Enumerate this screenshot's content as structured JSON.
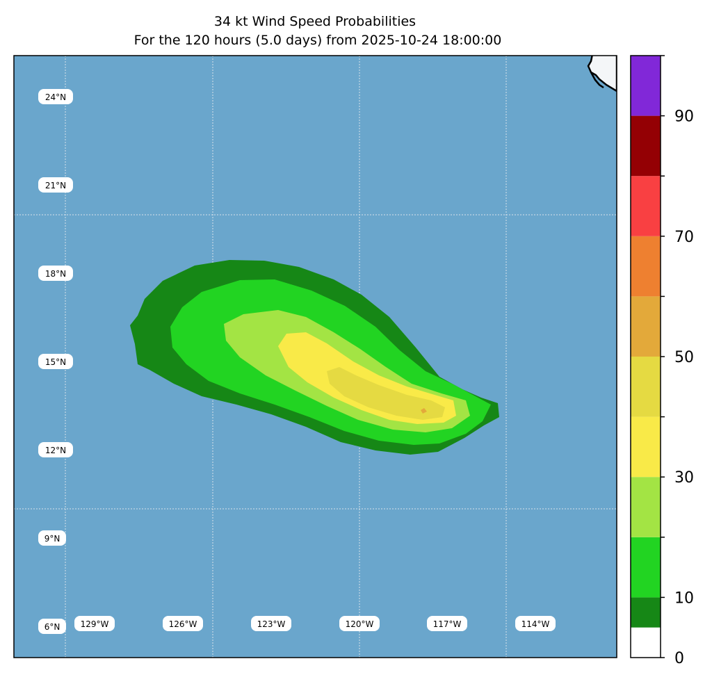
{
  "title_line1": "34 kt Wind Speed Probabilities",
  "title_line2": "For the 120 hours (5.0 days) from 2025-10-24 18:00:00",
  "ocean_color": "#6aa6cc",
  "land_color": "#f4f6f8",
  "lat_labels": [
    "24°N",
    "21°N",
    "18°N",
    "15°N",
    "12°N",
    "9°N",
    "6°N"
  ],
  "lon_labels": [
    "129°W",
    "126°W",
    "123°W",
    "120°W",
    "117°W",
    "114°W"
  ],
  "colorbar": {
    "tick_labels": [
      "0",
      "10",
      "30",
      "50",
      "70",
      "90"
    ],
    "levels": [
      0,
      5,
      10,
      20,
      30,
      40,
      50,
      60,
      70,
      80,
      90,
      100
    ],
    "colors": [
      "#ffffff",
      "#168716",
      "#22d422",
      "#a3e444",
      "#f9ea48",
      "#e5da42",
      "#e3a93a",
      "#ee8030",
      "#f94042",
      "#940004",
      "#8128d8"
    ]
  },
  "probability_bands": [
    {
      "range": "5-10",
      "color": "#168716"
    },
    {
      "range": "10-20",
      "color": "#22d422"
    },
    {
      "range": "20-30",
      "color": "#a3e444"
    },
    {
      "range": "30-40",
      "color": "#f9ea48"
    },
    {
      "range": "40-50",
      "color": "#e5da42"
    },
    {
      "range": "50-60",
      "color": "#e3a93a"
    }
  ]
}
